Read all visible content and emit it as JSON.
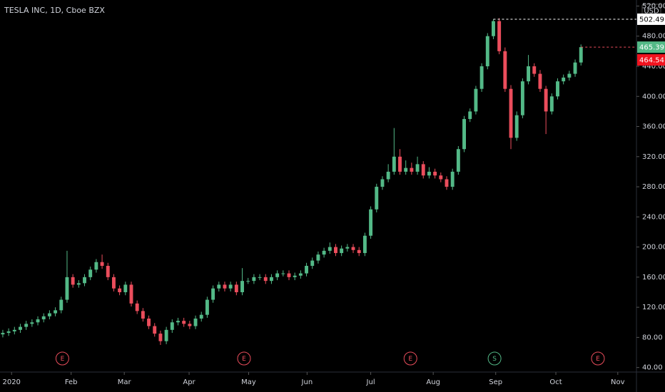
{
  "chart_data": {
    "type": "candlestick",
    "title": "TESLA INC, 1D, Cboe BZX",
    "currency": "USD",
    "up_color": "#53b987",
    "down_color": "#eb4d5c",
    "open": [
      84,
      86,
      88,
      90,
      94,
      98,
      100,
      104,
      108,
      112,
      116,
      130,
      160,
      150,
      152,
      160,
      170,
      180,
      175,
      160,
      145,
      140,
      150,
      125,
      115,
      105,
      95,
      85,
      75,
      90,
      100,
      102,
      98,
      95,
      105,
      110,
      130,
      145,
      150,
      145,
      150,
      140,
      155,
      155,
      160,
      160,
      155,
      160,
      165,
      165,
      160,
      162,
      165,
      175,
      182,
      190,
      195,
      200,
      192,
      198,
      200,
      196,
      192,
      215,
      250,
      280,
      290,
      300,
      320,
      300,
      305,
      300,
      310,
      295,
      300,
      295,
      290,
      280,
      300,
      330,
      370,
      380,
      410,
      440,
      480,
      500,
      460,
      410,
      345,
      375,
      420,
      440,
      430,
      410,
      380,
      400,
      420,
      425,
      430,
      445
    ],
    "high": [
      90,
      92,
      94,
      98,
      102,
      104,
      108,
      112,
      116,
      120,
      134,
      195,
      164,
      156,
      164,
      174,
      184,
      190,
      179,
      164,
      149,
      154,
      154,
      129,
      119,
      109,
      99,
      89,
      94,
      104,
      106,
      106,
      102,
      109,
      114,
      134,
      149,
      154,
      154,
      154,
      154,
      172,
      159,
      164,
      164,
      164,
      164,
      169,
      169,
      169,
      166,
      169,
      179,
      186,
      194,
      199,
      206,
      204,
      202,
      204,
      204,
      200,
      219,
      254,
      284,
      294,
      310,
      358,
      330,
      315,
      312,
      320,
      314,
      306,
      304,
      299,
      294,
      304,
      334,
      374,
      384,
      414,
      444,
      484,
      502.49,
      504,
      465,
      415,
      380,
      424,
      455,
      444,
      435,
      414,
      404,
      424,
      429,
      434,
      449,
      469
    ],
    "low": [
      80,
      82,
      84,
      86,
      90,
      94,
      96,
      100,
      104,
      108,
      112,
      126,
      146,
      146,
      148,
      156,
      166,
      171,
      156,
      141,
      136,
      136,
      121,
      111,
      101,
      91,
      81,
      70,
      71,
      86,
      96,
      94,
      91,
      91,
      101,
      106,
      126,
      141,
      141,
      141,
      136,
      136,
      151,
      151,
      156,
      151,
      151,
      156,
      161,
      156,
      156,
      158,
      161,
      171,
      178,
      186,
      191,
      188,
      188,
      194,
      192,
      188,
      188,
      211,
      246,
      276,
      286,
      296,
      296,
      296,
      296,
      296,
      291,
      291,
      291,
      286,
      276,
      276,
      296,
      326,
      366,
      376,
      406,
      436,
      476,
      456,
      406,
      330,
      341,
      371,
      416,
      426,
      406,
      350,
      376,
      396,
      416,
      421,
      426,
      441
    ],
    "close": [
      86,
      88,
      90,
      94,
      98,
      100,
      104,
      108,
      112,
      116,
      130,
      160,
      150,
      152,
      160,
      170,
      180,
      175,
      160,
      145,
      140,
      150,
      125,
      115,
      105,
      95,
      85,
      75,
      90,
      100,
      102,
      98,
      95,
      105,
      110,
      130,
      145,
      150,
      145,
      150,
      140,
      155,
      155,
      160,
      160,
      155,
      160,
      165,
      165,
      160,
      162,
      165,
      175,
      182,
      190,
      195,
      200,
      192,
      198,
      200,
      196,
      192,
      215,
      250,
      280,
      290,
      300,
      320,
      300,
      305,
      300,
      310,
      295,
      300,
      295,
      290,
      280,
      300,
      330,
      370,
      380,
      410,
      440,
      480,
      500,
      460,
      410,
      345,
      375,
      420,
      440,
      430,
      410,
      380,
      400,
      420,
      425,
      430,
      445,
      465.39
    ],
    "close_label": "465.39",
    "high_mark": 502.49,
    "high_label": "502.49",
    "prev_mark": 464.54,
    "prev_label": "464.54",
    "ylim": [
      34,
      528
    ],
    "yticks": [
      {
        "value": 40,
        "label": "40.00"
      },
      {
        "value": 80,
        "label": "80.00"
      },
      {
        "value": 120,
        "label": "120.00"
      },
      {
        "value": 160,
        "label": "160.00"
      },
      {
        "value": 200,
        "label": "200.00"
      },
      {
        "value": 240,
        "label": "240.00"
      },
      {
        "value": 280,
        "label": "280.00"
      },
      {
        "value": 320,
        "label": "320.00"
      },
      {
        "value": 360,
        "label": "360.00"
      },
      {
        "value": 400,
        "label": "400.00"
      },
      {
        "value": 440,
        "label": "440.00"
      },
      {
        "value": 480,
        "label": "480.00"
      },
      {
        "value": 520,
        "label": "520.00"
      }
    ],
    "xlim": [
      -0.48,
      108.5
    ],
    "xticks": [
      {
        "value": 1.5,
        "label": "2020"
      },
      {
        "value": 11.7,
        "label": "Feb"
      },
      {
        "value": 20.8,
        "label": "Mar"
      },
      {
        "value": 31.9,
        "label": "Apr"
      },
      {
        "value": 42.1,
        "label": "May"
      },
      {
        "value": 52.1,
        "label": "Jun"
      },
      {
        "value": 63,
        "label": "Jul"
      },
      {
        "value": 73.7,
        "label": "Aug"
      },
      {
        "value": 84.4,
        "label": "Sep"
      },
      {
        "value": 94.7,
        "label": "Oct"
      },
      {
        "value": 105.3,
        "label": "Nov"
      }
    ],
    "events": [
      {
        "label": "E",
        "value": 10.2,
        "color": "#eb4d5c"
      },
      {
        "label": "E",
        "value": 41.3,
        "color": "#eb4d5c"
      },
      {
        "label": "E",
        "value": 69.8,
        "color": "#eb4d5c"
      },
      {
        "label": "S",
        "value": 84.2,
        "color": "#53b987"
      },
      {
        "label": "E",
        "value": 101.9,
        "color": "#eb4d5c"
      }
    ]
  }
}
